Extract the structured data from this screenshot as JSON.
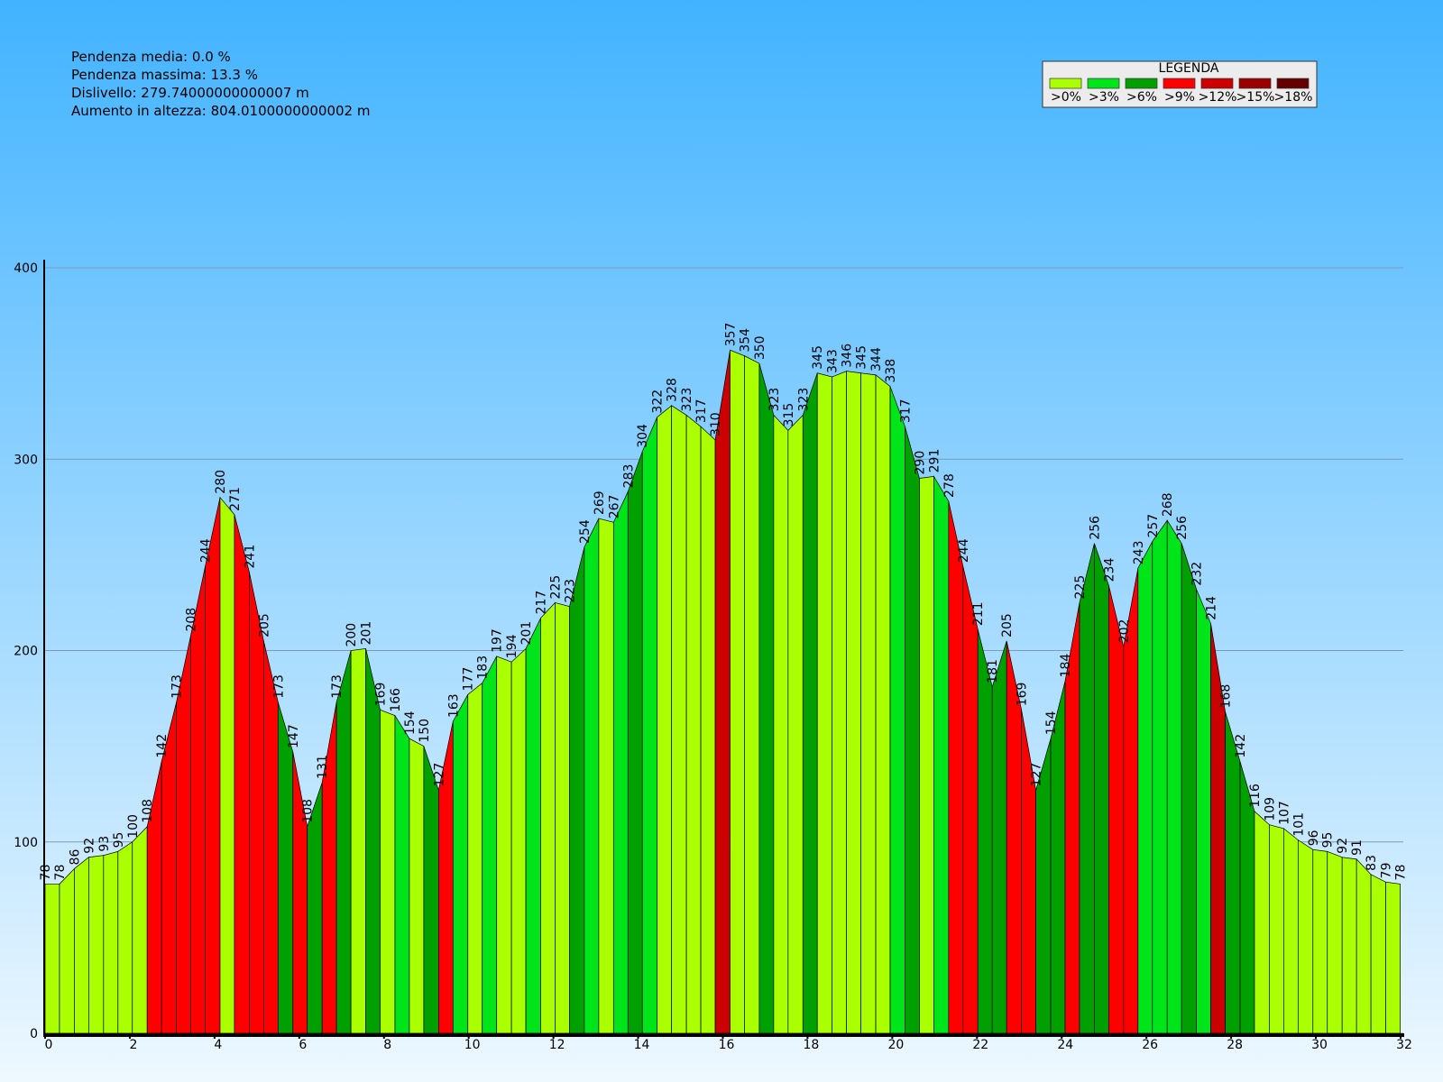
{
  "info": [
    "Pendenza media: 0.0 %",
    "Pendenza massima: 13.3 %",
    "Dislivello: 279.74000000000007 m",
    "Aumento in altezza: 804.0100000000002 m"
  ],
  "chart_data": {
    "type": "area",
    "x": [
      0,
      0.34,
      0.69,
      1.03,
      1.38,
      1.72,
      2.06,
      2.41,
      2.75,
      3.1,
      3.44,
      3.78,
      4.13,
      4.47,
      4.82,
      5.16,
      5.5,
      5.85,
      6.19,
      6.54,
      6.88,
      7.22,
      7.57,
      7.91,
      8.26,
      8.6,
      8.94,
      9.29,
      9.63,
      9.98,
      10.32,
      10.66,
      11.01,
      11.35,
      11.7,
      12.04,
      12.38,
      12.73,
      13.07,
      13.42,
      13.76,
      14.1,
      14.45,
      14.79,
      15.14,
      15.48,
      15.82,
      16.17,
      16.51,
      16.86,
      17.2,
      17.54,
      17.89,
      18.23,
      18.58,
      18.92,
      19.26,
      19.61,
      19.95,
      20.3,
      20.64,
      20.98,
      21.33,
      21.67,
      22.02,
      22.36,
      22.7,
      23.05,
      23.39,
      23.74,
      24.08,
      24.42,
      24.77,
      25.11,
      25.46,
      25.8,
      26.14,
      26.49,
      26.83,
      27.18,
      27.52,
      27.86,
      28.21,
      28.55,
      28.9,
      29.24,
      29.58,
      29.93,
      30.27,
      30.62,
      30.96,
      31.3,
      31.65,
      31.99
    ],
    "values": [
      78,
      78,
      86,
      92,
      93,
      95,
      100,
      108,
      142,
      173,
      208,
      244,
      280,
      271,
      241,
      205,
      173,
      147,
      108,
      131,
      173,
      200,
      201,
      169,
      166,
      154,
      150,
      127,
      163,
      177,
      183,
      197,
      194,
      201,
      217,
      225,
      223,
      254,
      269,
      267,
      283,
      304,
      322,
      328,
      323,
      317,
      310,
      357,
      354,
      350,
      323,
      315,
      323,
      345,
      343,
      346,
      345,
      344,
      338,
      317,
      290,
      291,
      278,
      244,
      211,
      181,
      205,
      169,
      127,
      154,
      184,
      225,
      256,
      234,
      202,
      243,
      257,
      268,
      256,
      232,
      214,
      168,
      142,
      116,
      109,
      107,
      101,
      96,
      95,
      92,
      91,
      83,
      79,
      78
    ],
    "segment_colors": [
      "#aaff00",
      "#aaff00",
      "#aaff00",
      "#aaff00",
      "#aaff00",
      "#aaff00",
      "#aaff00",
      "#ff0000",
      "#ff0000",
      "#ff0000",
      "#ff0000",
      "#ff0000",
      "#aaff00",
      "#ff0000",
      "#ff0000",
      "#ff0000",
      "#00a000",
      "#ff0000",
      "#00a000",
      "#ff0000",
      "#00a000",
      "#aaff00",
      "#00a000",
      "#aaff00",
      "#00e41a",
      "#aaff00",
      "#00a000",
      "#ff0000",
      "#00e41a",
      "#aaff00",
      "#00e41a",
      "#aaff00",
      "#aaff00",
      "#00e41a",
      "#aaff00",
      "#aaff00",
      "#00a000",
      "#00e41a",
      "#aaff00",
      "#00e41a",
      "#00a000",
      "#00e41a",
      "#aaff00",
      "#aaff00",
      "#aaff00",
      "#aaff00",
      "#cc0000",
      "#aaff00",
      "#aaff00",
      "#00a000",
      "#aaff00",
      "#aaff00",
      "#00a000",
      "#aaff00",
      "#aaff00",
      "#aaff00",
      "#aaff00",
      "#aaff00",
      "#00e41a",
      "#00a000",
      "#aaff00",
      "#00e41a",
      "#ff0000",
      "#ff0000",
      "#00a000",
      "#00a000",
      "#ff0000",
      "#ff0000",
      "#00a000",
      "#00a000",
      "#ff0000",
      "#00a000",
      "#00a000",
      "#ff0000",
      "#ff0000",
      "#00e41a",
      "#00e41a",
      "#00e41a",
      "#00a000",
      "#00e41a",
      "#cc0000",
      "#00a000",
      "#00a000",
      "#aaff00",
      "#aaff00",
      "#aaff00",
      "#aaff00",
      "#aaff00",
      "#aaff00",
      "#aaff00",
      "#aaff00",
      "#aaff00",
      "#aaff00"
    ],
    "legend": {
      "title": "LEGENDA",
      "items": [
        {
          "label": ">0%",
          "color": "#aaff00"
        },
        {
          "label": ">3%",
          "color": "#00e41a"
        },
        {
          "label": ">6%",
          "color": "#00a000"
        },
        {
          "label": ">9%",
          "color": "#ff0000"
        },
        {
          "label": ">12%",
          "color": "#cc0000"
        },
        {
          "label": ">15%",
          "color": "#990000"
        },
        {
          "label": ">18%",
          "color": "#660000"
        }
      ]
    },
    "xlim": [
      0,
      32
    ],
    "xticks": [
      0,
      2,
      4,
      6,
      8,
      10,
      12,
      14,
      16,
      18,
      20,
      22,
      24,
      26,
      28,
      30,
      32
    ],
    "ylim": [
      0,
      400
    ],
    "yticks": [
      0,
      100,
      200,
      300,
      400
    ],
    "grid": true
  }
}
